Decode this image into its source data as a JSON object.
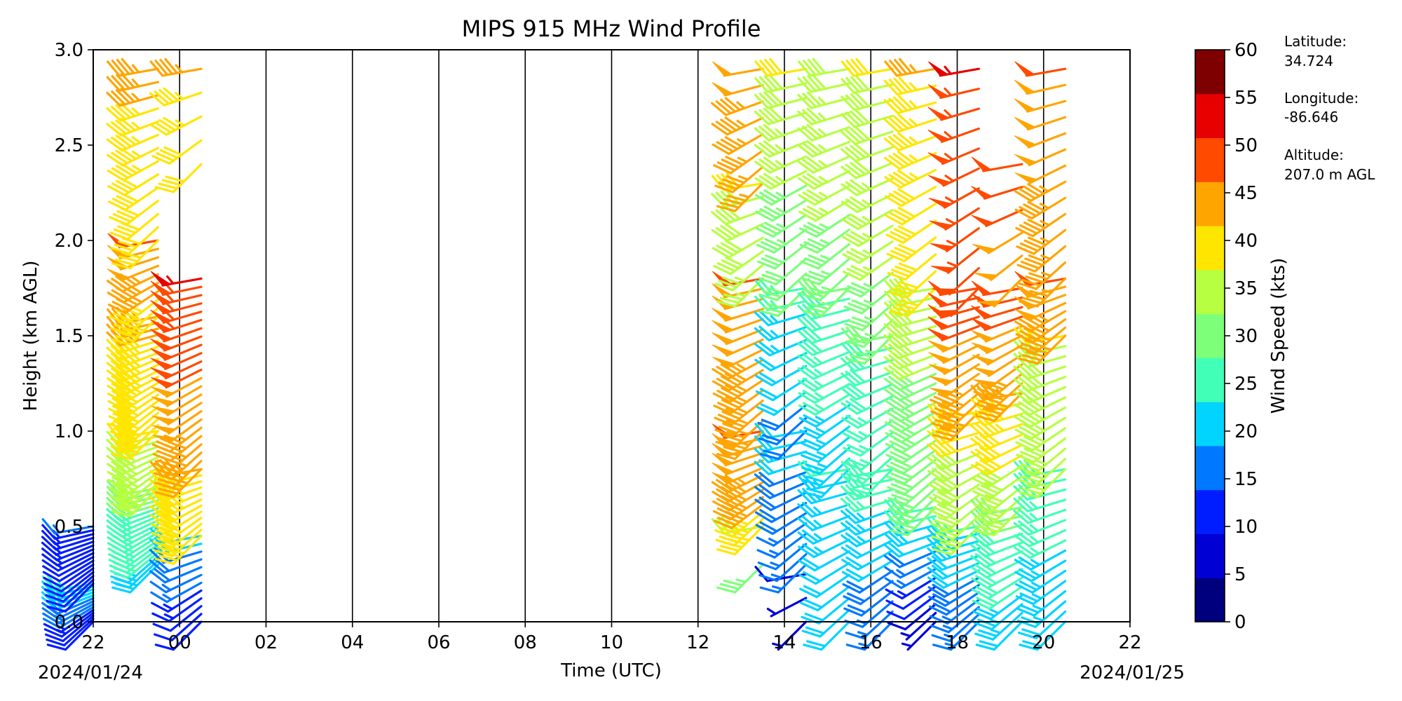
{
  "chart_data": {
    "type": "wind-barb",
    "title": "MIPS 915 MHz Wind Profile",
    "xlabel": "Time (UTC)",
    "ylabel": "Height (km AGL)",
    "x_tick_labels": [
      "22",
      "00",
      "02",
      "04",
      "06",
      "08",
      "10",
      "12",
      "14",
      "16",
      "18",
      "20",
      "22"
    ],
    "x_ticks_hours": [
      -2,
      0,
      2,
      4,
      6,
      8,
      10,
      12,
      14,
      16,
      18,
      20,
      22
    ],
    "xlim_hours": [
      -2,
      22
    ],
    "date_start": "2024/01/24",
    "date_end": "2024/01/25",
    "y_tick_labels": [
      "0.0",
      "0.5",
      "1.0",
      "1.5",
      "2.0",
      "2.5",
      "3.0"
    ],
    "y_ticks": [
      0.0,
      0.5,
      1.0,
      1.5,
      2.0,
      2.5,
      3.0
    ],
    "ylim": [
      0,
      3.0
    ],
    "grid": "vertical lines every 2 h",
    "colorbar": {
      "label": "Wind Speed (kts)",
      "ticks": [
        "0",
        "5",
        "10",
        "15",
        "20",
        "25",
        "30",
        "35",
        "40",
        "45",
        "50",
        "55",
        "60"
      ],
      "colors": [
        "#00007f",
        "#0000d5",
        "#001dff",
        "#0078ff",
        "#00d4ff",
        "#41ffb6",
        "#7dff7a",
        "#b6ff41",
        "#ffe600",
        "#ffa500",
        "#ff4a00",
        "#e60000",
        "#7f0000"
      ]
    },
    "station": {
      "lat_label": "Latitude:",
      "lat_value": "34.724",
      "lon_label": "Longitude:",
      "lon_value": "-86.646",
      "alt_label": "Altitude:",
      "alt_value": "207.0 m AGL"
    },
    "profiles": [
      {
        "time": -2.0,
        "gates": [
          [
            0.0,
            0.2,
            10,
            25,
            14
          ],
          [
            0.2,
            0.5,
            10,
            15,
            16
          ]
        ]
      },
      {
        "time": -0.5,
        "gates": [
          [
            0.3,
            0.7,
            24,
            32,
            20
          ],
          [
            0.7,
            1.0,
            35,
            40,
            12
          ],
          [
            1.0,
            1.6,
            40,
            46,
            20
          ],
          [
            1.6,
            2.0,
            43,
            50,
            10
          ],
          [
            2.0,
            2.9,
            40,
            46,
            14
          ]
        ]
      },
      {
        "time": 0.5,
        "gates": [
          [
            0.0,
            0.45,
            10,
            22,
            12
          ],
          [
            0.45,
            0.8,
            40,
            45,
            12
          ],
          [
            0.8,
            1.8,
            45,
            55,
            24
          ],
          [
            2.4,
            2.9,
            40,
            46,
            5
          ]
        ]
      },
      {
        "time": 13.5,
        "gates": [
          [
            0.3,
            0.5,
            33,
            35,
            2
          ],
          [
            0.5,
            1.0,
            44,
            50,
            14
          ],
          [
            1.0,
            1.8,
            45,
            50,
            16
          ],
          [
            1.8,
            2.3,
            37,
            40,
            8
          ],
          [
            2.3,
            2.9,
            45,
            48,
            8
          ]
        ]
      },
      {
        "time": 14.5,
        "gates": [
          [
            0.0,
            0.25,
            5,
            8,
            3
          ],
          [
            0.3,
            1.0,
            15,
            22,
            14
          ],
          [
            1.0,
            1.75,
            18,
            26,
            12
          ],
          [
            1.75,
            2.9,
            30,
            40,
            16
          ]
        ]
      },
      {
        "time": 15.5,
        "gates": [
          [
            0.0,
            0.8,
            20,
            25,
            14
          ],
          [
            0.8,
            1.75,
            22,
            30,
            18
          ],
          [
            1.75,
            2.9,
            33,
            38,
            16
          ]
        ]
      },
      {
        "time": 16.5,
        "gates": [
          [
            0.0,
            0.8,
            15,
            28,
            16
          ],
          [
            0.8,
            1.5,
            25,
            30,
            12
          ],
          [
            1.5,
            2.9,
            33,
            40,
            18
          ]
        ]
      },
      {
        "time": 17.5,
        "gates": [
          [
            0.0,
            0.6,
            5,
            28,
            14
          ],
          [
            0.6,
            1.75,
            30,
            38,
            24
          ],
          [
            1.75,
            2.9,
            40,
            45,
            14
          ]
        ]
      },
      {
        "time": 18.5,
        "gates": [
          [
            0.0,
            0.5,
            15,
            25,
            14
          ],
          [
            0.5,
            1.1,
            36,
            42,
            12
          ],
          [
            1.1,
            1.75,
            46,
            52,
            14
          ],
          [
            1.75,
            2.9,
            52,
            55,
            12
          ]
        ]
      },
      {
        "time": 19.5,
        "gates": [
          [
            0.0,
            0.6,
            22,
            32,
            14
          ],
          [
            0.6,
            1.2,
            36,
            45,
            12
          ],
          [
            1.2,
            1.75,
            46,
            52,
            12
          ],
          [
            1.8,
            2.4,
            48,
            52,
            6
          ]
        ]
      },
      {
        "time": 20.5,
        "gates": [
          [
            0.0,
            0.8,
            22,
            28,
            16
          ],
          [
            0.8,
            1.5,
            35,
            40,
            14
          ],
          [
            1.5,
            1.8,
            45,
            50,
            8
          ],
          [
            1.8,
            2.9,
            45,
            50,
            14
          ]
        ]
      }
    ]
  }
}
